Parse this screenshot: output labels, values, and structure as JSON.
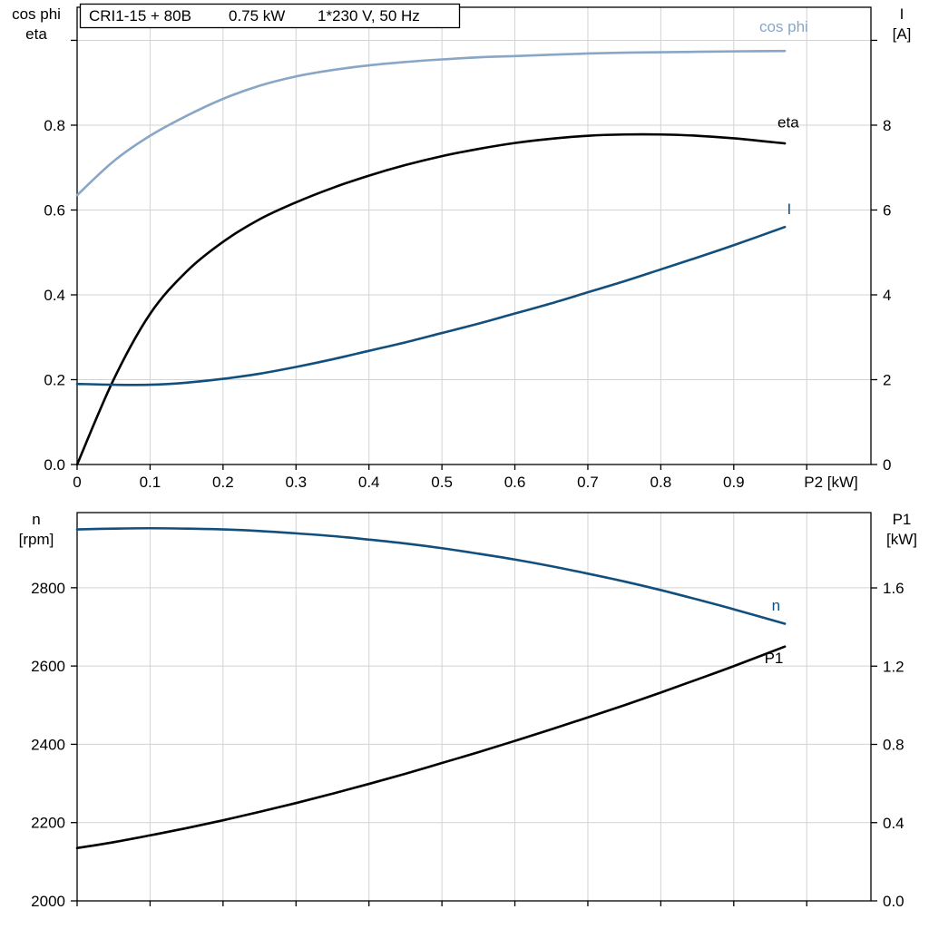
{
  "colors": {
    "grid": "#d3d3d3",
    "axis": "#000000",
    "light_blue": "#88a6c6",
    "dark_blue": "#124f7d",
    "black": "#000000",
    "background": "#ffffff"
  },
  "title_box": {
    "text": "CRI1-15 + 80B   0.75 kW   1*230 V, 50 Hz",
    "parts": [
      "CRI1-15 + 80B",
      "0.75 kW",
      "1*230 V, 50 Hz"
    ]
  },
  "chart_data": [
    {
      "type": "line",
      "title": "CRI1-15 + 80B   0.75 kW   1*230 V, 50 Hz",
      "xlabel": "P2 [kW]",
      "ylabel_left_lines": [
        "cos phi",
        "eta"
      ],
      "ylabel_right_lines": [
        "I",
        "[A]"
      ],
      "xlim": [
        0,
        1.088
      ],
      "ylim_left": [
        0,
        1.078
      ],
      "ylim_right": [
        0,
        10.78
      ],
      "xgrid": [
        0.1,
        0.2,
        0.3,
        0.4,
        0.5,
        0.6,
        0.7,
        0.8,
        0.9,
        1.0
      ],
      "ygrid_left": [
        0.2,
        0.4,
        0.6,
        0.8,
        1.0
      ],
      "xtick_values": [
        0,
        0.1,
        0.2,
        0.3,
        0.4,
        0.5,
        0.6,
        0.7,
        0.8,
        0.9,
        1.0
      ],
      "xtick_labels": [
        "0",
        "0.1",
        "0.2",
        "0.3",
        "0.4",
        "0.5",
        "0.6",
        "0.7",
        "0.8",
        "0.9",
        ""
      ],
      "ytick_left_values": [
        0,
        0.2,
        0.4,
        0.6,
        0.8,
        1.0
      ],
      "ytick_left_labels": [
        "0.0",
        "0.2",
        "0.4",
        "0.6",
        "0.8",
        ""
      ],
      "ytick_right_values": [
        0,
        2,
        4,
        6,
        8,
        10
      ],
      "ytick_right_labels": [
        "0",
        "2",
        "4",
        "6",
        "8",
        ""
      ],
      "x": [
        0,
        0.05,
        0.1,
        0.15,
        0.2,
        0.25,
        0.3,
        0.35,
        0.4,
        0.45,
        0.5,
        0.55,
        0.6,
        0.65,
        0.7,
        0.75,
        0.8,
        0.85,
        0.9,
        0.97
      ],
      "series": [
        {
          "name": "cos phi",
          "axis": "left",
          "color_key": "light_blue",
          "values": [
            0.635,
            0.715,
            0.775,
            0.822,
            0.862,
            0.893,
            0.915,
            0.93,
            0.941,
            0.949,
            0.955,
            0.96,
            0.963,
            0.966,
            0.969,
            0.971,
            0.972,
            0.973,
            0.974,
            0.975
          ],
          "label": {
            "text": "cos phi",
            "x": 0.935,
            "y": 1.02
          }
        },
        {
          "name": "eta",
          "axis": "left",
          "color_key": "black",
          "values": [
            0,
            0.2,
            0.355,
            0.455,
            0.525,
            0.578,
            0.618,
            0.652,
            0.681,
            0.706,
            0.727,
            0.744,
            0.758,
            0.768,
            0.775,
            0.778,
            0.778,
            0.775,
            0.769,
            0.757
          ],
          "label": {
            "text": "eta",
            "x": 0.96,
            "y": 0.795
          }
        },
        {
          "name": "I",
          "axis": "right",
          "color_key": "dark_blue",
          "values": [
            1.9,
            1.88,
            1.88,
            1.93,
            2.02,
            2.14,
            2.3,
            2.48,
            2.68,
            2.88,
            3.1,
            3.32,
            3.56,
            3.8,
            4.06,
            4.32,
            4.6,
            4.88,
            5.17,
            5.6
          ],
          "label": {
            "text": "I",
            "x": 0.973,
            "y": 5.9
          }
        }
      ]
    },
    {
      "type": "line",
      "title": "",
      "xlabel": "",
      "ylabel_left_lines": [
        "n",
        "[rpm]"
      ],
      "ylabel_right_lines": [
        "P1",
        "[kW]"
      ],
      "xlim": [
        0,
        1.088
      ],
      "ylim_left": [
        2000,
        2992
      ],
      "ylim_right": [
        0,
        1.985
      ],
      "xgrid": [
        0.1,
        0.2,
        0.3,
        0.4,
        0.5,
        0.6,
        0.7,
        0.8,
        0.9,
        1.0
      ],
      "ygrid_left": [
        2200,
        2400,
        2600,
        2800
      ],
      "xtick_values": [
        0,
        0.1,
        0.2,
        0.3,
        0.4,
        0.5,
        0.6,
        0.7,
        0.8,
        0.9,
        1.0
      ],
      "xtick_labels": [
        "",
        "",
        "",
        "",
        "",
        "",
        "",
        "",
        "",
        "",
        ""
      ],
      "ytick_left_values": [
        2000,
        2200,
        2400,
        2600,
        2800
      ],
      "ytick_left_labels": [
        "2000",
        "2200",
        "2400",
        "2600",
        "2800"
      ],
      "ytick_right_values": [
        0,
        0.4,
        0.8,
        1.2,
        1.6
      ],
      "ytick_right_labels": [
        "0.0",
        "0.4",
        "0.8",
        "1.2",
        "1.6"
      ],
      "x": [
        0,
        0.05,
        0.1,
        0.15,
        0.2,
        0.25,
        0.3,
        0.35,
        0.4,
        0.45,
        0.5,
        0.55,
        0.6,
        0.65,
        0.7,
        0.75,
        0.8,
        0.85,
        0.9,
        0.97
      ],
      "series": [
        {
          "name": "n",
          "axis": "left",
          "color_key": "dark_blue",
          "values": [
            2949,
            2951,
            2952,
            2951,
            2949,
            2945,
            2939,
            2932,
            2923,
            2913,
            2901,
            2887,
            2872,
            2855,
            2836,
            2816,
            2794,
            2770,
            2745,
            2708
          ],
          "label": {
            "text": "n",
            "x": 0.952,
            "y": 2742
          }
        },
        {
          "name": "P1",
          "axis": "right",
          "color_key": "black",
          "values": [
            0.27,
            0.3,
            0.335,
            0.372,
            0.412,
            0.455,
            0.5,
            0.548,
            0.598,
            0.65,
            0.705,
            0.76,
            0.818,
            0.877,
            0.938,
            1.0,
            1.065,
            1.132,
            1.2,
            1.3
          ],
          "label": {
            "text": "P1",
            "x": 0.942,
            "y": 1.215
          }
        }
      ]
    }
  ]
}
